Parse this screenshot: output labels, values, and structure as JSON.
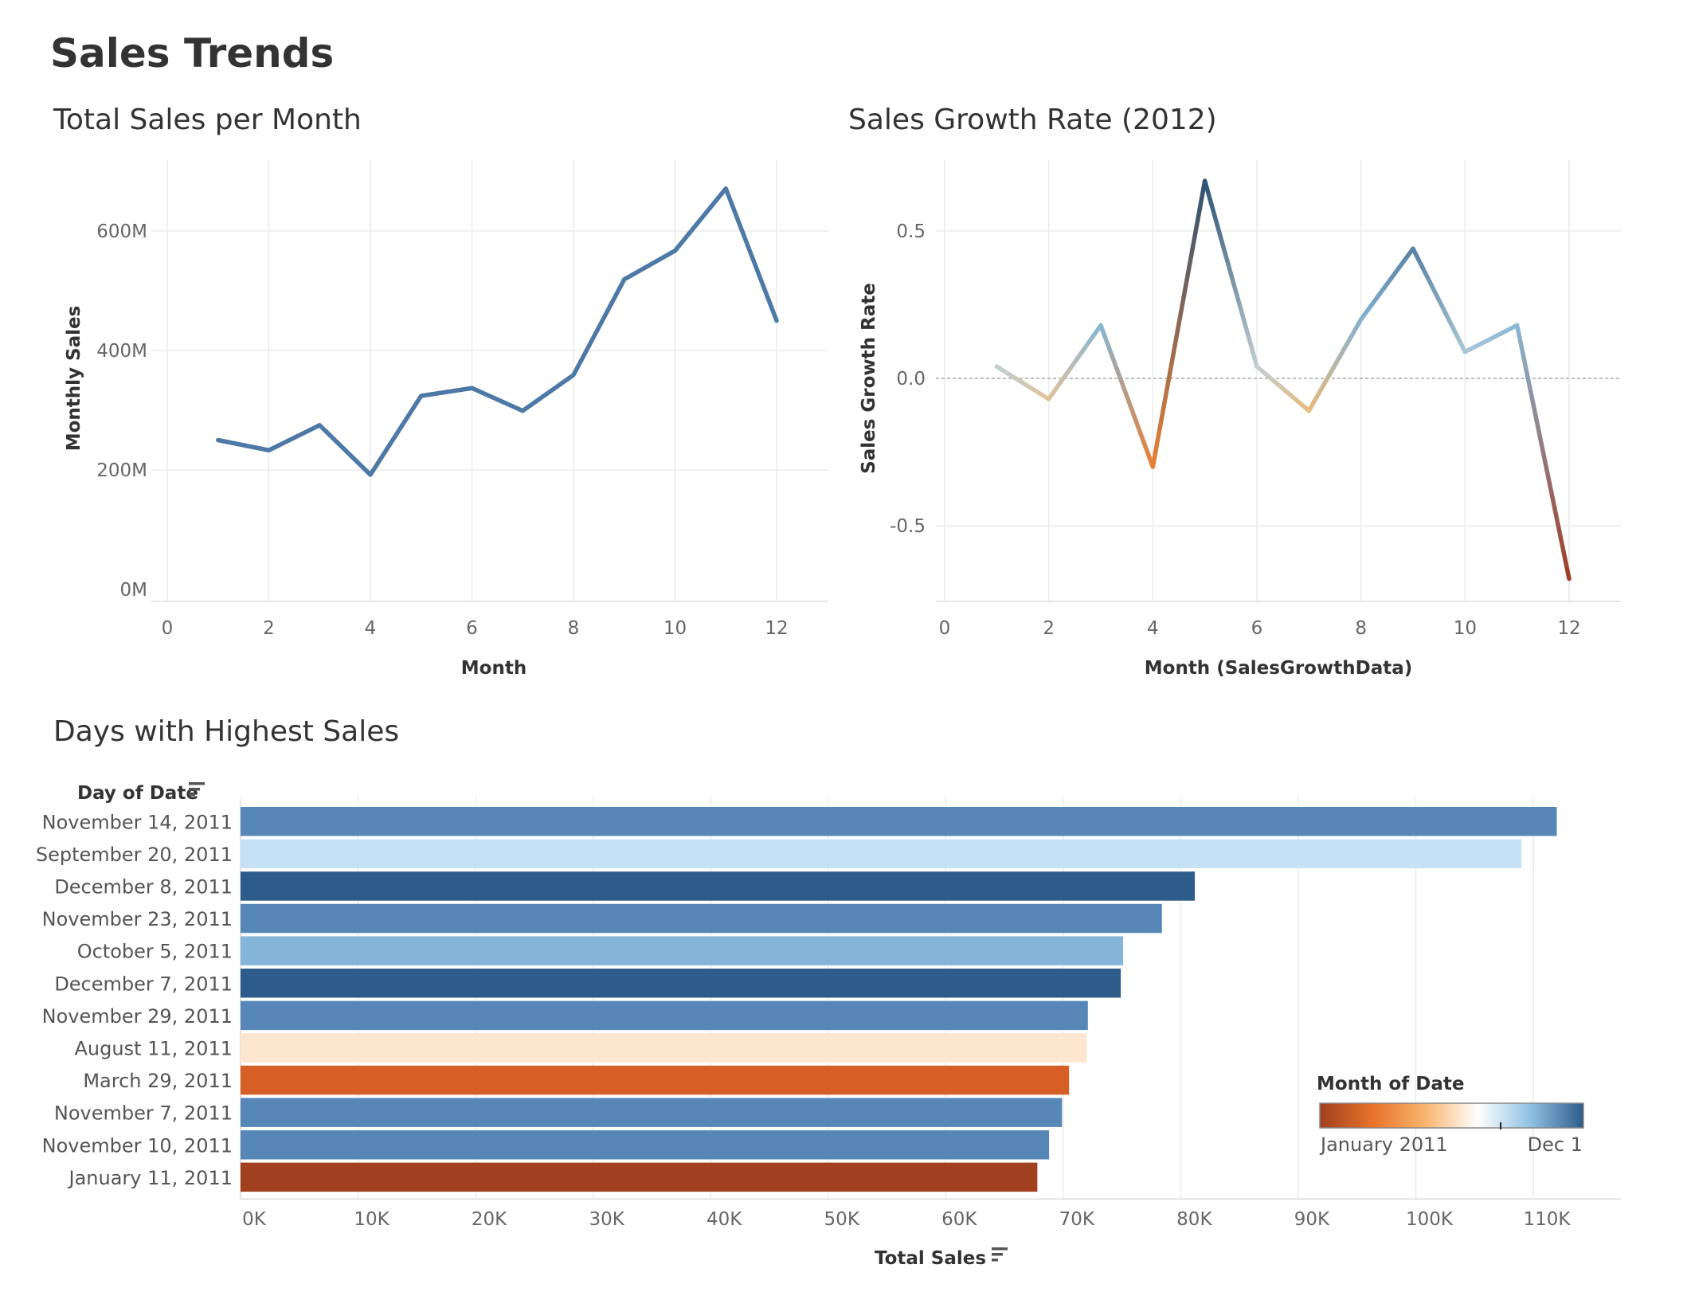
{
  "dashboard": {
    "title": "Sales Trends"
  },
  "chart_data": [
    {
      "type": "line",
      "title": "Total Sales per Month",
      "xlabel": "Month",
      "ylabel": "Monthly Sales",
      "xlim": [
        0,
        12
      ],
      "ylim": [
        0,
        700
      ],
      "x_ticks": [
        0,
        2,
        4,
        6,
        8,
        10,
        12
      ],
      "y_ticks": [
        {
          "v": 0,
          "label": "0M"
        },
        {
          "v": 200,
          "label": "200M"
        },
        {
          "v": 400,
          "label": "400M"
        },
        {
          "v": 600,
          "label": "600M"
        }
      ],
      "series": [
        {
          "x": [
            1,
            2,
            3,
            4,
            5,
            6,
            7,
            8,
            9,
            10,
            11,
            12
          ],
          "y": [
            250,
            233,
            275,
            192,
            324,
            337,
            299,
            359,
            519,
            567,
            671,
            450
          ]
        }
      ],
      "line_color": "#4e79a7",
      "grid": true
    },
    {
      "type": "line",
      "title": "Sales Growth Rate (2012)",
      "xlabel": "Month (SalesGrowthData)",
      "ylabel": "Sales Growth Rate",
      "xlim": [
        0,
        12
      ],
      "ylim": [
        -0.75,
        0.75
      ],
      "x_ticks": [
        0,
        2,
        4,
        6,
        8,
        10,
        12
      ],
      "y_ticks": [
        {
          "v": -0.5,
          "label": "-0.5"
        },
        {
          "v": 0,
          "label": "0.0"
        },
        {
          "v": 0.5,
          "label": "0.5"
        }
      ],
      "series": [
        {
          "x": [
            1,
            2,
            3,
            4,
            5,
            6,
            7,
            8,
            9,
            10,
            11,
            12
          ],
          "y": [
            0.04,
            -0.07,
            0.18,
            -0.3,
            0.67,
            0.04,
            -0.11,
            0.2,
            0.44,
            0.09,
            0.18,
            -0.68
          ]
        }
      ],
      "zero_line": true,
      "grid": true,
      "color_scale": "orange-blue diverging by value"
    },
    {
      "type": "bar",
      "orientation": "horizontal",
      "title": "Days with Highest Sales",
      "row_header": "Day of Date",
      "xlabel": "Total Sales",
      "xlim": [
        0,
        117000
      ],
      "x_ticks": [
        {
          "v": 0,
          "label": "0K"
        },
        {
          "v": 10000,
          "label": "10K"
        },
        {
          "v": 20000,
          "label": "20K"
        },
        {
          "v": 30000,
          "label": "30K"
        },
        {
          "v": 40000,
          "label": "40K"
        },
        {
          "v": 50000,
          "label": "50K"
        },
        {
          "v": 60000,
          "label": "60K"
        },
        {
          "v": 70000,
          "label": "70K"
        },
        {
          "v": 80000,
          "label": "80K"
        },
        {
          "v": 90000,
          "label": "90K"
        },
        {
          "v": 100000,
          "label": "100K"
        },
        {
          "v": 110000,
          "label": "110K"
        }
      ],
      "categories": [
        "November 14, 2011",
        "September 20, 2011",
        "December 8, 2011",
        "November 23, 2011",
        "October 5, 2011",
        "December 7, 2011",
        "November 29, 2011",
        "August 11, 2011",
        "March 29, 2011",
        "November 7, 2011",
        "November 10, 2011",
        "January 11, 2011"
      ],
      "values": [
        112000,
        109000,
        81200,
        78400,
        75100,
        74900,
        72100,
        72000,
        70500,
        69900,
        68800,
        67800
      ],
      "colors": [
        "#5687b7",
        "#c6e1f5",
        "#2d5c8a",
        "#5687b7",
        "#85b6da",
        "#2d5c8a",
        "#5687b7",
        "#fde6cf",
        "#d65f26",
        "#5687b7",
        "#5687b7",
        "#a0401f"
      ],
      "legend": {
        "title": "Month of Date",
        "min_label": "January 2011",
        "max_label": "Dec 1",
        "position": "bottom-right",
        "gradient": [
          "#a0401f",
          "#e8732a",
          "#f8b56e",
          "#ffffff",
          "#8ec1e3",
          "#2d5c8a"
        ]
      }
    }
  ]
}
